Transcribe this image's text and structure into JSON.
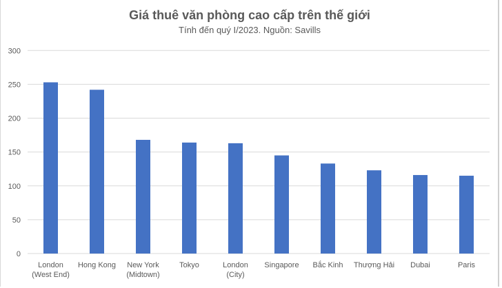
{
  "chart_data": {
    "type": "bar",
    "title": "Giá thuê văn phòng cao cấp trên thế giới",
    "subtitle": "Tính đến quý I/2023. Nguồn: Savills",
    "categories": [
      [
        "London",
        "(West End)"
      ],
      [
        "Hong Kong"
      ],
      [
        "New York",
        "(Midtown)"
      ],
      [
        "Tokyo"
      ],
      [
        "London",
        "(City)"
      ],
      [
        "Singapore"
      ],
      [
        "Bắc Kinh"
      ],
      [
        "Thượng Hải"
      ],
      [
        "Dubai"
      ],
      [
        "Paris"
      ]
    ],
    "values": [
      253,
      242,
      168,
      164,
      163,
      145,
      133,
      123,
      116,
      115
    ],
    "ylim": [
      0,
      300
    ],
    "yticks": [
      0,
      50,
      100,
      150,
      200,
      250,
      300
    ],
    "grid": true,
    "bar_color": "#4472C4",
    "grid_color": "#d9d9d9",
    "xlabel": "",
    "ylabel": ""
  }
}
